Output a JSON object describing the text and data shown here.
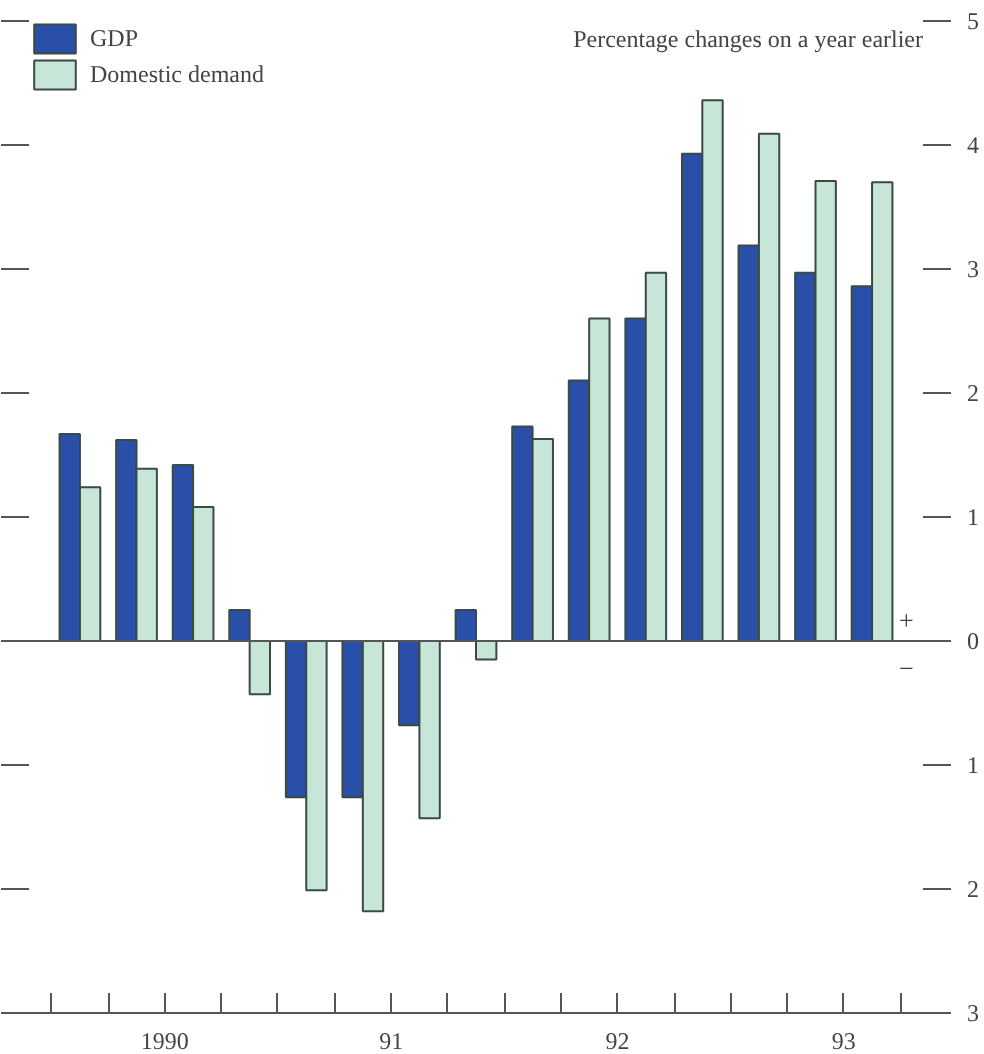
{
  "chart_data": {
    "type": "bar",
    "title": "Percentage changes on a year earlier",
    "x": [
      1989.625,
      1989.875,
      1990.125,
      1990.375,
      1990.625,
      1990.875,
      1991.125,
      1991.375,
      1991.625,
      1991.875,
      1992.125,
      1992.375,
      1992.625,
      1992.875,
      1993.125
    ],
    "series": [
      {
        "name": "GDP",
        "color": "#2a4fa8",
        "values": [
          1.67,
          1.62,
          1.42,
          0.25,
          -1.26,
          -1.26,
          -0.68,
          0.25,
          1.73,
          2.1,
          2.6,
          3.93,
          3.19,
          2.97,
          2.86
        ]
      },
      {
        "name": "Domestic demand",
        "color": "#c8e6d8",
        "values": [
          1.24,
          1.39,
          1.08,
          -0.43,
          -2.01,
          -2.18,
          -1.43,
          -0.15,
          1.63,
          2.6,
          2.97,
          4.36,
          4.09,
          3.71,
          3.7
        ]
      }
    ],
    "xlim": [
      1989.4,
      1993.35
    ],
    "xticks": [
      {
        "value": 1989.5,
        "label": null
      },
      {
        "value": 1989.75,
        "label": null
      },
      {
        "value": 1990,
        "label": "1990"
      },
      {
        "value": 1990.25,
        "label": null
      },
      {
        "value": 1990.5,
        "label": null
      },
      {
        "value": 1990.75,
        "label": null
      },
      {
        "value": 1991,
        "label": "91"
      },
      {
        "value": 1991.25,
        "label": null
      },
      {
        "value": 1991.5,
        "label": null
      },
      {
        "value": 1991.75,
        "label": null
      },
      {
        "value": 1992,
        "label": "92"
      },
      {
        "value": 1992.25,
        "label": null
      },
      {
        "value": 1992.5,
        "label": null
      },
      {
        "value": 1992.75,
        "label": null
      },
      {
        "value": 1993,
        "label": "93"
      },
      {
        "value": 1993.25,
        "label": null
      }
    ],
    "ylim": [
      -3,
      5
    ],
    "yticks": [
      {
        "value": -3,
        "label": "3"
      },
      {
        "value": -2,
        "label": "2"
      },
      {
        "value": -1,
        "label": "1"
      },
      0,
      1,
      2,
      3,
      4,
      5
    ],
    "annotations": [
      "+",
      "−"
    ],
    "legend": "top left"
  }
}
